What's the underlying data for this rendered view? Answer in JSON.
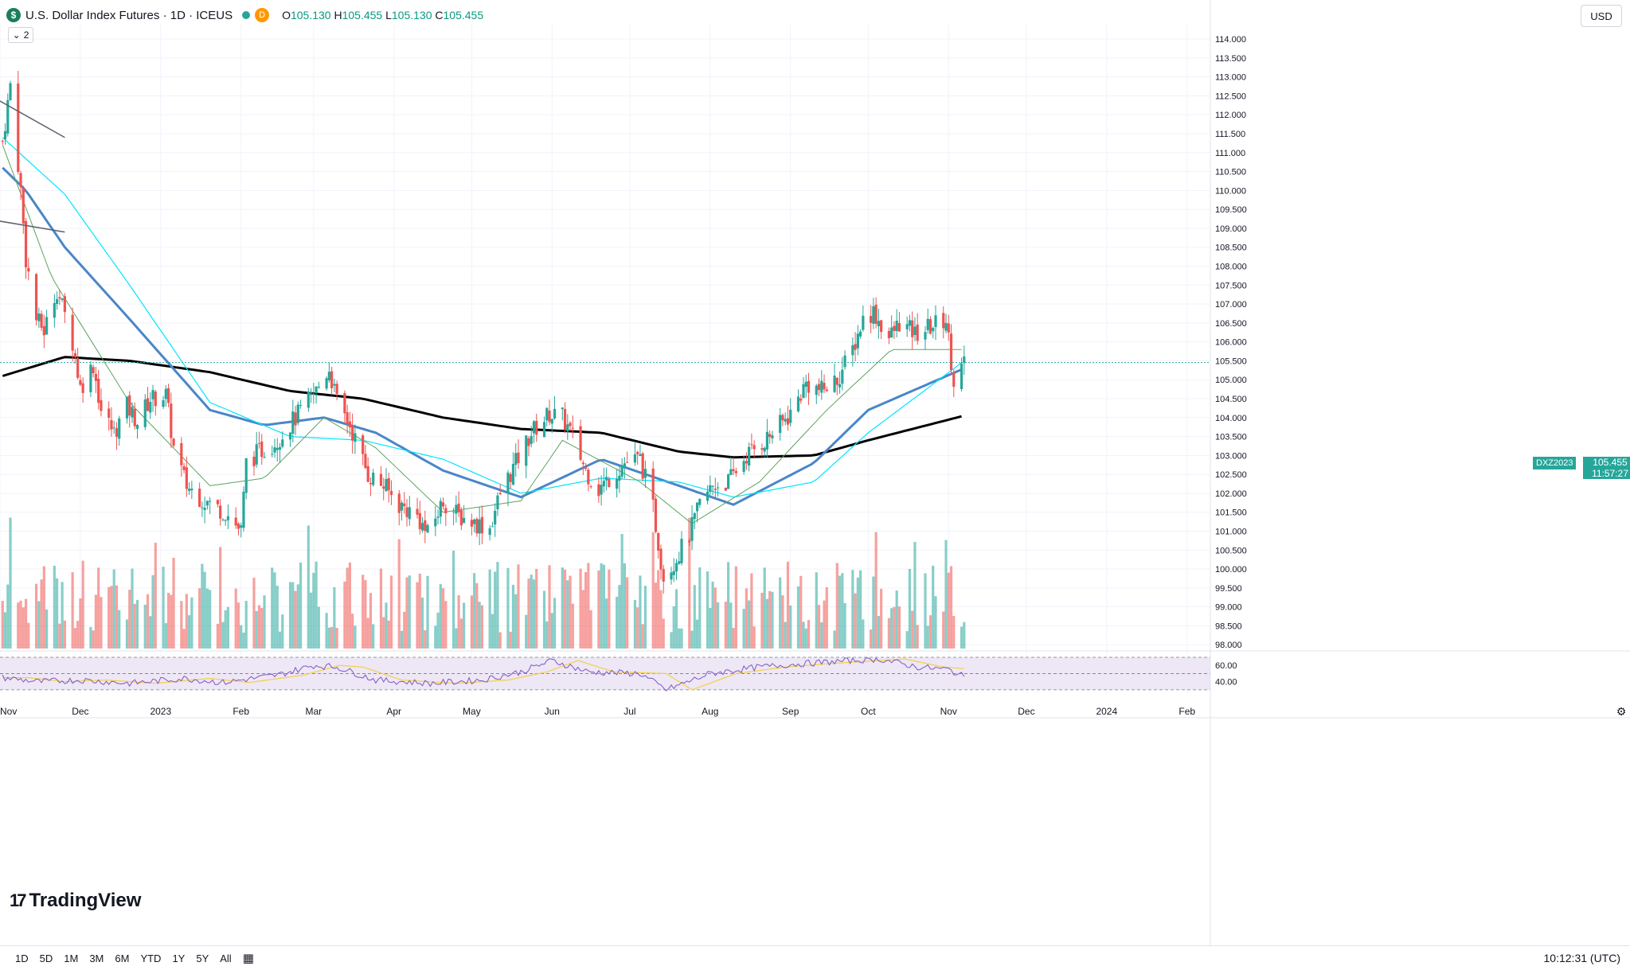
{
  "header": {
    "symbol_badge": "$",
    "title": "U.S. Dollar Index Futures · 1D · ICEUS",
    "d_badge": "D",
    "open_label": "O",
    "open": "105.130",
    "high_label": "H",
    "high": "105.455",
    "low_label": "L",
    "low": "105.130",
    "close_label": "C",
    "close": "105.455",
    "indicator_count": "2",
    "currency": "USD"
  },
  "price_tag": {
    "symbol": "DXZ2023",
    "price": "105.455",
    "countdown": "11:57:27"
  },
  "colors": {
    "up": "#26a69a",
    "down": "#ef5350",
    "ma_slow": "#000000",
    "ma_mid": "#4a86c8",
    "ma_fast": "#00e5ff",
    "ma_short": "#5fa35f",
    "rsi": "#7e57c2",
    "rsi_ma": "#f5d042",
    "rsi_band": "#ede7f6"
  },
  "bottom_bar": {
    "ranges": [
      "1D",
      "5D",
      "1M",
      "3M",
      "6M",
      "YTD",
      "1Y",
      "5Y",
      "All"
    ],
    "clock": "10:12:31 (UTC)"
  },
  "branding": {
    "logo_text": "TradingView"
  },
  "chart_data": {
    "type": "candlestick",
    "title": "U.S. Dollar Index Futures · 1D · ICEUS",
    "x_tick_labels": [
      "Nov",
      "Dec",
      "2023",
      "Feb",
      "Mar",
      "Apr",
      "May",
      "Jun",
      "Jul",
      "Aug",
      "Sep",
      "Oct",
      "Nov",
      "Dec",
      "2024",
      "Feb"
    ],
    "y_tick_labels": [
      "114.000",
      "113.500",
      "113.000",
      "112.500",
      "112.000",
      "111.500",
      "111.000",
      "110.500",
      "110.000",
      "109.500",
      "109.000",
      "108.500",
      "108.000",
      "107.500",
      "107.000",
      "106.500",
      "106.000",
      "105.500",
      "105.000",
      "104.500",
      "104.000",
      "103.500",
      "103.000",
      "102.500",
      "102.000",
      "101.500",
      "101.000",
      "100.500",
      "100.000",
      "99.500",
      "99.000",
      "98.500",
      "98.000"
    ],
    "ylim": [
      97.9,
      114.4
    ],
    "close_path": [
      [
        "2022-11-01",
        111.3
      ],
      [
        "2022-11-04",
        112.8
      ],
      [
        "2022-11-08",
        110.0
      ],
      [
        "2022-11-10",
        108.2
      ],
      [
        "2022-11-14",
        106.6
      ],
      [
        "2022-11-17",
        106.3
      ],
      [
        "2022-11-22",
        107.4
      ],
      [
        "2022-11-28",
        106.0
      ],
      [
        "2022-12-01",
        104.8
      ],
      [
        "2022-12-06",
        105.4
      ],
      [
        "2022-12-09",
        104.2
      ],
      [
        "2022-12-14",
        103.6
      ],
      [
        "2022-12-19",
        104.3
      ],
      [
        "2022-12-23",
        103.9
      ],
      [
        "2022-12-28",
        104.5
      ],
      [
        "2023-01-03",
        104.6
      ],
      [
        "2023-01-06",
        103.2
      ],
      [
        "2023-01-11",
        102.2
      ],
      [
        "2023-01-18",
        101.8
      ],
      [
        "2023-01-26",
        101.5
      ],
      [
        "2023-02-01",
        101.0
      ],
      [
        "2023-02-03",
        102.8
      ],
      [
        "2023-02-08",
        103.1
      ],
      [
        "2023-02-15",
        103.4
      ],
      [
        "2023-02-22",
        104.0
      ],
      [
        "2023-03-01",
        104.6
      ],
      [
        "2023-03-07",
        105.3
      ],
      [
        "2023-03-10",
        104.4
      ],
      [
        "2023-03-15",
        103.8
      ],
      [
        "2023-03-22",
        102.5
      ],
      [
        "2023-03-28",
        102.2
      ],
      [
        "2023-04-03",
        101.7
      ],
      [
        "2023-04-10",
        101.4
      ],
      [
        "2023-04-14",
        100.9
      ],
      [
        "2023-04-20",
        101.8
      ],
      [
        "2023-04-26",
        101.4
      ],
      [
        "2023-05-03",
        101.2
      ],
      [
        "2023-05-08",
        101.1
      ],
      [
        "2023-05-12",
        102.0
      ],
      [
        "2023-05-18",
        102.8
      ],
      [
        "2023-05-24",
        103.6
      ],
      [
        "2023-05-31",
        104.1
      ],
      [
        "2023-06-05",
        104.0
      ],
      [
        "2023-06-09",
        103.5
      ],
      [
        "2023-06-14",
        102.6
      ],
      [
        "2023-06-19",
        102.1
      ],
      [
        "2023-06-23",
        102.4
      ],
      [
        "2023-06-29",
        102.8
      ],
      [
        "2023-07-05",
        102.9
      ],
      [
        "2023-07-10",
        101.6
      ],
      [
        "2023-07-14",
        99.8
      ],
      [
        "2023-07-19",
        100.3
      ],
      [
        "2023-07-24",
        100.9
      ],
      [
        "2023-07-28",
        101.7
      ],
      [
        "2023-08-02",
        102.2
      ],
      [
        "2023-08-08",
        102.3
      ],
      [
        "2023-08-15",
        103.0
      ],
      [
        "2023-08-22",
        103.4
      ],
      [
        "2023-08-28",
        103.8
      ],
      [
        "2023-09-01",
        104.1
      ],
      [
        "2023-09-07",
        104.9
      ],
      [
        "2023-09-13",
        104.7
      ],
      [
        "2023-09-19",
        105.0
      ],
      [
        "2023-09-25",
        105.8
      ],
      [
        "2023-09-29",
        106.6
      ],
      [
        "2023-10-03",
        106.8
      ],
      [
        "2023-10-09",
        106.1
      ],
      [
        "2023-10-13",
        106.5
      ],
      [
        "2023-10-19",
        106.2
      ],
      [
        "2023-10-25",
        106.4
      ],
      [
        "2023-10-31",
        106.6
      ],
      [
        "2023-11-03",
        105.0
      ],
      [
        "2023-11-07",
        105.455
      ]
    ],
    "moving_averages": [
      {
        "name": "MA slow (black)",
        "points": [
          [
            "2022-11-01",
            105.1
          ],
          [
            "2022-11-25",
            105.6
          ],
          [
            "2022-12-20",
            105.5
          ],
          [
            "2023-01-20",
            105.2
          ],
          [
            "2023-02-20",
            104.7
          ],
          [
            "2023-03-20",
            104.5
          ],
          [
            "2023-04-20",
            104.0
          ],
          [
            "2023-05-20",
            103.7
          ],
          [
            "2023-06-20",
            103.6
          ],
          [
            "2023-07-20",
            103.1
          ],
          [
            "2023-08-10",
            102.95
          ],
          [
            "2023-09-10",
            103.0
          ],
          [
            "2023-10-01",
            103.4
          ],
          [
            "2023-11-07",
            104.05
          ]
        ]
      },
      {
        "name": "MA mid (blue)",
        "points": [
          [
            "2022-11-01",
            110.6
          ],
          [
            "2022-11-10",
            110.0
          ],
          [
            "2022-11-25",
            108.5
          ],
          [
            "2022-12-20",
            106.6
          ],
          [
            "2023-01-20",
            104.2
          ],
          [
            "2023-02-10",
            103.8
          ],
          [
            "2023-03-05",
            104.0
          ],
          [
            "2023-03-25",
            103.6
          ],
          [
            "2023-04-20",
            102.6
          ],
          [
            "2023-05-20",
            101.9
          ],
          [
            "2023-06-20",
            102.9
          ],
          [
            "2023-07-20",
            102.2
          ],
          [
            "2023-08-10",
            101.7
          ],
          [
            "2023-09-10",
            102.8
          ],
          [
            "2023-10-01",
            104.2
          ],
          [
            "2023-11-07",
            105.3
          ]
        ]
      },
      {
        "name": "MA fast (cyan)",
        "points": [
          [
            "2022-11-01",
            111.4
          ],
          [
            "2022-11-25",
            109.9
          ],
          [
            "2022-12-20",
            107.5
          ],
          [
            "2023-01-20",
            104.4
          ],
          [
            "2023-02-20",
            103.5
          ],
          [
            "2023-03-20",
            103.4
          ],
          [
            "2023-04-20",
            102.9
          ],
          [
            "2023-05-20",
            102.0
          ],
          [
            "2023-06-20",
            102.4
          ],
          [
            "2023-07-20",
            102.3
          ],
          [
            "2023-08-10",
            101.9
          ],
          [
            "2023-09-10",
            102.3
          ],
          [
            "2023-10-01",
            103.6
          ],
          [
            "2023-11-07",
            105.5
          ]
        ]
      },
      {
        "name": "MA short (green)",
        "points": [
          [
            "2022-11-01",
            111.2
          ],
          [
            "2022-11-20",
            107.7
          ],
          [
            "2022-12-20",
            104.4
          ],
          [
            "2023-01-20",
            102.2
          ],
          [
            "2023-02-10",
            102.4
          ],
          [
            "2023-03-05",
            104.0
          ],
          [
            "2023-03-25",
            103.2
          ],
          [
            "2023-04-20",
            101.5
          ],
          [
            "2023-05-20",
            101.8
          ],
          [
            "2023-06-05",
            103.4
          ],
          [
            "2023-07-05",
            102.3
          ],
          [
            "2023-07-25",
            101.2
          ],
          [
            "2023-08-20",
            102.3
          ],
          [
            "2023-09-15",
            104.2
          ],
          [
            "2023-10-10",
            105.8
          ],
          [
            "2023-11-07",
            105.8
          ]
        ]
      }
    ],
    "trendlines": [
      {
        "from": [
          "2022-10-30",
          112.4
        ],
        "to": [
          "2022-11-25",
          111.4
        ]
      },
      {
        "from": [
          "2022-10-30",
          109.2
        ],
        "to": [
          "2022-11-25",
          108.9
        ]
      }
    ],
    "rsi": {
      "y_tick_labels": [
        "60.00",
        "40.00"
      ],
      "ylim": [
        25,
        70
      ],
      "values": [
        [
          "2022-11-01",
          45
        ],
        [
          "2022-11-15",
          40
        ],
        [
          "2022-12-01",
          42
        ],
        [
          "2022-12-20",
          38
        ],
        [
          "2023-01-10",
          44
        ],
        [
          "2023-01-25",
          39
        ],
        [
          "2023-02-15",
          48
        ],
        [
          "2023-03-01",
          60
        ],
        [
          "2023-03-10",
          58
        ],
        [
          "2023-03-25",
          42
        ],
        [
          "2023-04-15",
          38
        ],
        [
          "2023-05-05",
          42
        ],
        [
          "2023-05-20",
          52
        ],
        [
          "2023-06-01",
          66
        ],
        [
          "2023-06-15",
          52
        ],
        [
          "2023-07-05",
          50
        ],
        [
          "2023-07-15",
          30
        ],
        [
          "2023-08-01",
          50
        ],
        [
          "2023-08-20",
          58
        ],
        [
          "2023-09-05",
          62
        ],
        [
          "2023-09-25",
          66
        ],
        [
          "2023-10-05",
          68
        ],
        [
          "2023-10-20",
          58
        ],
        [
          "2023-11-01",
          55
        ],
        [
          "2023-11-07",
          46
        ]
      ]
    }
  }
}
